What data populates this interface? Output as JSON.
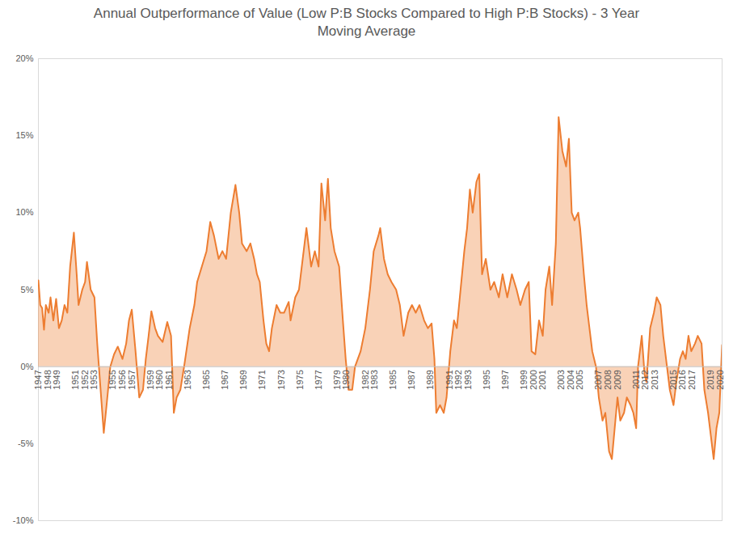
{
  "chart_data": {
    "type": "area",
    "title": "Annual Outperformance of Value (Low P:B Stocks Compared to High P:B Stocks) - 3 Year Moving Average",
    "xlim": [
      1947,
      2020.2
    ],
    "xticks": [
      1947,
      1948,
      1949,
      1951,
      1952,
      1953,
      1955,
      1956,
      1957,
      1959,
      1960,
      1961,
      1963,
      1965,
      1967,
      1969,
      1971,
      1973,
      1975,
      1977,
      1979,
      1980,
      1982,
      1983,
      1985,
      1987,
      1989,
      1991,
      1992,
      1993,
      1995,
      1997,
      1999,
      2000,
      2001,
      2003,
      2004,
      2005,
      2007,
      2008,
      2009,
      2011,
      2012,
      2013,
      2015,
      2016,
      2017,
      2019,
      2020
    ],
    "ylim": [
      -10,
      20
    ],
    "yticks": [
      {
        "value": -10,
        "label": "-10%"
      },
      {
        "value": -5,
        "label": "-5%"
      },
      {
        "value": 0,
        "label": "0%"
      },
      {
        "value": 5,
        "label": "5%"
      },
      {
        "value": 10,
        "label": "10%"
      },
      {
        "value": 15,
        "label": "15%"
      },
      {
        "value": 20,
        "label": "20%"
      }
    ],
    "grid": false,
    "color": "#ed7d31",
    "x": [
      1947.0,
      1947.2,
      1947.4,
      1947.6,
      1947.8,
      1948.1,
      1948.3,
      1948.6,
      1948.9,
      1949.2,
      1949.5,
      1949.8,
      1950.1,
      1950.4,
      1950.8,
      1951.1,
      1951.3,
      1951.7,
      1952.0,
      1952.2,
      1952.6,
      1953.0,
      1953.3,
      1953.6,
      1954.0,
      1954.3,
      1954.7,
      1955.1,
      1955.5,
      1956.0,
      1956.4,
      1956.7,
      1957.0,
      1957.4,
      1957.8,
      1958.2,
      1958.5,
      1958.8,
      1959.1,
      1959.5,
      1959.8,
      1960.3,
      1960.8,
      1961.2,
      1961.5,
      1961.8,
      1962.2,
      1962.6,
      1963.2,
      1963.7,
      1964.0,
      1964.5,
      1965.0,
      1965.4,
      1965.8,
      1966.3,
      1966.7,
      1967.1,
      1967.6,
      1968.1,
      1968.5,
      1968.8,
      1969.3,
      1969.7,
      1970.1,
      1970.4,
      1970.7,
      1971.1,
      1971.4,
      1971.7,
      1972.0,
      1972.5,
      1972.9,
      1973.3,
      1973.8,
      1974.0,
      1974.5,
      1974.9,
      1975.3,
      1975.7,
      1976.2,
      1976.6,
      1977.0,
      1977.3,
      1977.7,
      1978.0,
      1978.3,
      1978.7,
      1979.2,
      1979.6,
      1979.9,
      1980.2,
      1980.6,
      1980.9,
      1981.5,
      1982.0,
      1982.5,
      1982.9,
      1983.4,
      1983.6,
      1984.0,
      1984.4,
      1984.8,
      1985.3,
      1985.7,
      1986.1,
      1986.6,
      1987.0,
      1987.4,
      1987.8,
      1988.3,
      1988.7,
      1989.1,
      1989.4,
      1989.6,
      1990.0,
      1990.4,
      1990.7,
      1991.1,
      1991.5,
      1991.8,
      1992.2,
      1992.6,
      1992.9,
      1993.2,
      1993.5,
      1993.9,
      1994.2,
      1994.5,
      1994.9,
      1995.4,
      1995.8,
      1996.3,
      1996.7,
      1997.2,
      1997.7,
      1998.2,
      1998.6,
      1999.1,
      1999.5,
      1999.8,
      2000.2,
      2000.6,
      2001.0,
      2001.3,
      2001.7,
      2002.0,
      2002.4,
      2002.7,
      2003.1,
      2003.5,
      2003.8,
      2004.1,
      2004.4,
      2004.8,
      2005.0,
      2005.4,
      2005.7,
      2006.0,
      2006.3,
      2006.7,
      2007.0,
      2007.4,
      2007.7,
      2008.1,
      2008.4,
      2008.7,
      2009.0,
      2009.3,
      2009.7,
      2010.0,
      2010.4,
      2010.7,
      2011.0,
      2011.2,
      2011.6,
      2011.9,
      2012.1,
      2012.5,
      2012.9,
      2013.2,
      2013.6,
      2013.9,
      2014.3,
      2014.6,
      2015.0,
      2015.3,
      2015.7,
      2016.0,
      2016.3,
      2016.6,
      2016.9,
      2017.3,
      2017.6,
      2018.0,
      2018.3,
      2018.7,
      2019.0,
      2019.3,
      2019.6,
      2019.9,
      2020.2
    ],
    "values": [
      5.6,
      4.0,
      3.8,
      2.4,
      4.0,
      3.5,
      4.5,
      3.0,
      4.4,
      2.5,
      3.0,
      4.0,
      3.5,
      6.5,
      8.7,
      6.0,
      4.0,
      5.0,
      5.5,
      6.8,
      5.0,
      4.5,
      1.5,
      -1.0,
      -4.3,
      -2.5,
      0.0,
      0.8,
      1.3,
      0.5,
      1.5,
      3.0,
      3.7,
      1.0,
      -2.0,
      -1.5,
      0.5,
      2.0,
      3.6,
      2.5,
      2.0,
      1.6,
      2.9,
      2.0,
      -3.0,
      -2.0,
      -1.5,
      0.0,
      2.5,
      4.0,
      5.5,
      6.5,
      7.5,
      9.4,
      8.5,
      7.0,
      7.5,
      7.0,
      10.0,
      11.8,
      10.0,
      8.0,
      7.5,
      8.0,
      7.0,
      6.0,
      5.5,
      3.0,
      1.5,
      1.0,
      2.5,
      4.0,
      3.5,
      3.5,
      4.2,
      3.0,
      4.5,
      5.0,
      7.0,
      9.0,
      6.5,
      7.5,
      6.5,
      11.9,
      9.5,
      12.2,
      9.0,
      7.5,
      6.5,
      3.0,
      0.5,
      -1.5,
      -1.5,
      0.0,
      1.0,
      2.5,
      5.0,
      7.5,
      8.5,
      9.0,
      7.0,
      6.0,
      5.5,
      5.0,
      4.0,
      2.0,
      3.5,
      4.0,
      3.5,
      4.0,
      3.0,
      2.5,
      2.8,
      0.5,
      -3.0,
      -2.5,
      -3.0,
      -2.0,
      1.0,
      3.0,
      2.5,
      5.0,
      7.5,
      9.0,
      11.5,
      10.0,
      12.0,
      12.5,
      6.0,
      7.0,
      5.0,
      5.5,
      4.5,
      6.0,
      4.5,
      6.0,
      5.0,
      4.0,
      5.0,
      5.5,
      1.0,
      0.8,
      3.0,
      2.0,
      5.0,
      6.5,
      4.0,
      8.0,
      16.2,
      14.0,
      13.0,
      14.8,
      10.0,
      9.5,
      10.0,
      9.0,
      6.0,
      4.0,
      2.5,
      1.0,
      0.0,
      -2.0,
      -3.5,
      -3.0,
      -5.5,
      -6.0,
      -4.0,
      -2.0,
      -3.5,
      -3.0,
      -2.0,
      -2.5,
      -3.0,
      -4.0,
      0.0,
      2.0,
      -0.5,
      -1.0,
      2.5,
      3.5,
      4.5,
      4.0,
      2.0,
      0.0,
      -1.5,
      -2.5,
      -1.0,
      0.5,
      1.0,
      0.5,
      2.0,
      1.0,
      1.5,
      2.0,
      1.5,
      -1.5,
      -3.0,
      -4.5,
      -6.0,
      -4.0,
      -3.0,
      1.4
    ]
  }
}
